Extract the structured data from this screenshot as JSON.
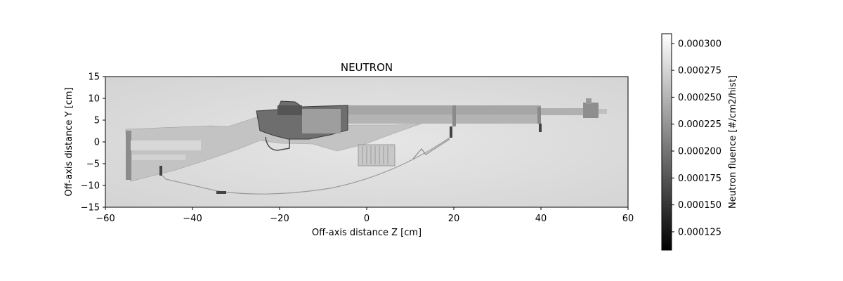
{
  "chart_data": {
    "type": "heatmap",
    "title": "NEUTRON",
    "xlabel": "Off-axis distance Z [cm]",
    "ylabel": "Off-axis distance Y [cm]",
    "xlim": [
      -60,
      60
    ],
    "ylim": [
      -15,
      15
    ],
    "xticks": [
      -60,
      -40,
      -20,
      0,
      20,
      40,
      60
    ],
    "xtick_labels": [
      "−60",
      "−40",
      "−20",
      "0",
      "20",
      "40",
      "60"
    ],
    "yticks": [
      -15,
      -10,
      -5,
      0,
      5,
      10,
      15
    ],
    "ytick_labels": [
      "−15",
      "−10",
      "−5",
      "0",
      "5",
      "10",
      "15"
    ],
    "grid": false,
    "colormap": "gray",
    "colorbar": {
      "label": "Neutron fluence [#/cm2/hist]",
      "vmin": 0.000108,
      "vmax": 0.000309,
      "ticks": [
        0.000125,
        0.00015,
        0.000175,
        0.0002,
        0.000225,
        0.00025,
        0.000275,
        0.0003
      ],
      "tick_labels": [
        "0.000125",
        "0.000150",
        "0.000175",
        "0.000200",
        "0.000225",
        "0.000250",
        "0.000275",
        "0.000300"
      ]
    },
    "background_fluence": 0.000282,
    "image_description_values": {
      "stock_fluence": 0.00025,
      "receiver_fluence": 0.00016,
      "barrel_fluence": 0.00021,
      "clip_fluence": 0.00024,
      "sling_fluence": 0.00022
    }
  }
}
